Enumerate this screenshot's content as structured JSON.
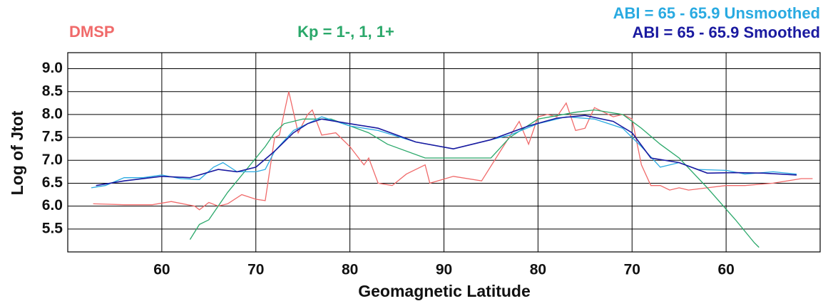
{
  "chart_data": {
    "type": "line",
    "x_label": "Geomagnetic Latitude",
    "y_label": "Log of Jtot",
    "xlim": [
      50,
      130
    ],
    "ylim": [
      5.0,
      9.35
    ],
    "xticks": [
      60,
      70,
      80,
      90,
      {
        "value": 100,
        "label": "80"
      },
      {
        "value": 110,
        "label": "70"
      },
      {
        "value": 120,
        "label": "60"
      }
    ],
    "yticks": [
      5.5,
      6.0,
      6.5,
      7.0,
      7.5,
      8.0,
      8.5,
      9.0
    ],
    "yticks_labels": [
      "5.5",
      "6.0",
      "6.5",
      "7.0",
      "7.5",
      "8.0",
      "8.5",
      "9.0"
    ],
    "grid": true,
    "series": [
      {
        "name": "DMSP",
        "color": "#f06a6a",
        "x": [
          52.7,
          56,
          59,
          61,
          63.5,
          64,
          65,
          66,
          67,
          68.5,
          70,
          71,
          72,
          72.5,
          73.5,
          74.5,
          75.5,
          76,
          77,
          78.5,
          80,
          81.5,
          82,
          83,
          84.5,
          86,
          88,
          88.5,
          91,
          94,
          96,
          98,
          99,
          100,
          101,
          102,
          103,
          104,
          105,
          106,
          108,
          109,
          110,
          111,
          112,
          113,
          114,
          115,
          116,
          118,
          120,
          122,
          125,
          128,
          129.2
        ],
        "values": [
          6.05,
          6.03,
          6.03,
          6.1,
          6.0,
          5.92,
          6.08,
          6.0,
          6.05,
          6.25,
          6.15,
          6.12,
          7.5,
          7.55,
          8.5,
          7.6,
          8.0,
          8.1,
          7.55,
          7.6,
          7.3,
          6.9,
          7.05,
          6.5,
          6.45,
          6.7,
          6.9,
          6.5,
          6.65,
          6.55,
          7.2,
          7.85,
          7.35,
          7.95,
          8.0,
          7.95,
          8.25,
          7.65,
          7.7,
          8.15,
          7.95,
          8.0,
          7.9,
          6.9,
          6.45,
          6.45,
          6.35,
          6.4,
          6.35,
          6.4,
          6.45,
          6.45,
          6.5,
          6.6,
          6.6
        ]
      },
      {
        "name": "Kp = 1-, 1, 1+",
        "color": "#2aa86a",
        "x": [
          63,
          64,
          65,
          67,
          69,
          71,
          72,
          73,
          75,
          78,
          82,
          84,
          88,
          92,
          95,
          97,
          100,
          104,
          106,
          109,
          111,
          113,
          115,
          118,
          121,
          123,
          123.5
        ],
        "values": [
          5.27,
          5.6,
          5.7,
          6.3,
          6.8,
          7.3,
          7.6,
          7.8,
          7.9,
          7.9,
          7.6,
          7.35,
          7.05,
          7.05,
          7.05,
          7.5,
          7.9,
          8.05,
          8.1,
          8.0,
          7.7,
          7.35,
          7.05,
          6.4,
          5.7,
          5.2,
          5.1
        ]
      },
      {
        "name": "ABI = 65 - 65.9 Unsmoothed",
        "color": "#29aae1",
        "x": [
          52.5,
          54,
          56,
          58,
          60,
          62,
          64,
          65.5,
          66.5,
          68,
          70,
          71,
          72,
          74,
          76,
          77,
          80,
          83,
          87,
          91,
          94,
          97,
          100,
          103,
          106,
          109,
          111,
          113,
          115,
          117,
          120,
          122,
          125,
          127.5
        ],
        "values": [
          6.4,
          6.45,
          6.62,
          6.62,
          6.68,
          6.6,
          6.58,
          6.85,
          6.95,
          6.75,
          6.75,
          6.8,
          7.2,
          7.65,
          7.85,
          7.95,
          7.75,
          7.65,
          7.4,
          7.25,
          7.4,
          7.55,
          7.8,
          7.95,
          7.9,
          7.7,
          7.3,
          6.85,
          6.95,
          6.8,
          6.78,
          6.7,
          6.75,
          6.7
        ]
      },
      {
        "name": "ABI = 65 - 65.9 Smoothed",
        "color": "#1a1aa0",
        "x": [
          53,
          56,
          60,
          63,
          66,
          68,
          70,
          72,
          74,
          75.5,
          77,
          80,
          83,
          87,
          91,
          95,
          99,
          102,
          105,
          108,
          110,
          112,
          115,
          118,
          121,
          124,
          127.5
        ],
        "values": [
          6.45,
          6.55,
          6.65,
          6.62,
          6.8,
          6.75,
          6.85,
          7.2,
          7.6,
          7.8,
          7.9,
          7.8,
          7.7,
          7.4,
          7.25,
          7.45,
          7.75,
          7.92,
          7.98,
          7.85,
          7.6,
          7.05,
          6.95,
          6.72,
          6.73,
          6.72,
          6.68
        ]
      }
    ]
  }
}
